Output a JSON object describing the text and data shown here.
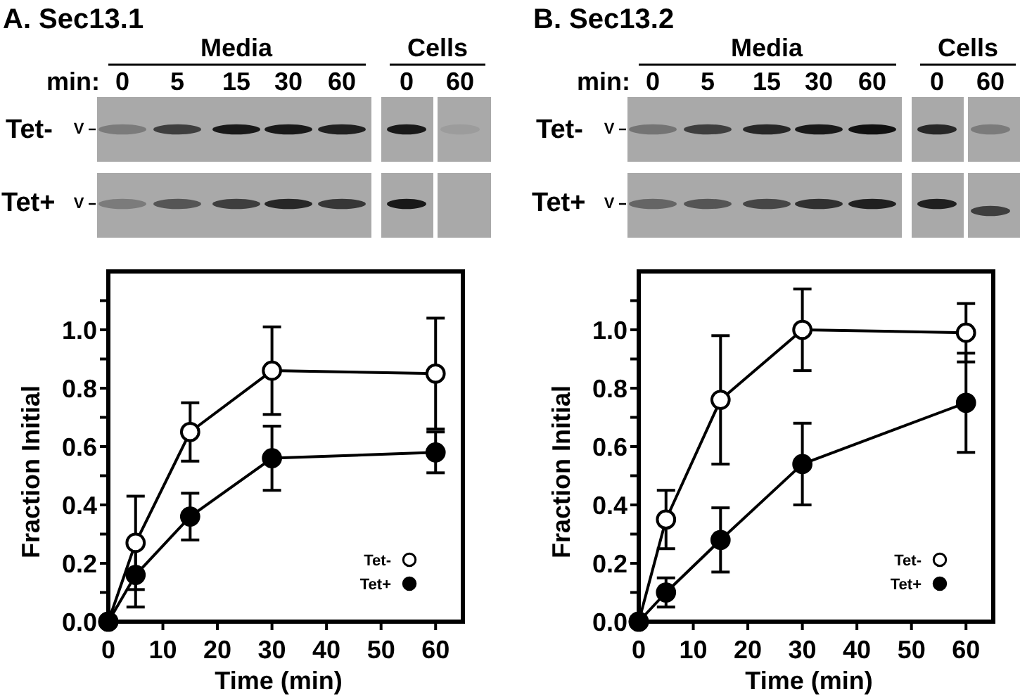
{
  "chart_data": [
    {
      "type": "line",
      "title": "A. Sec13.1",
      "xlabel": "Time (min)",
      "ylabel": "Fraction Initial",
      "annotations": [
        "Media",
        "Cells",
        "min:",
        "0",
        "5",
        "15",
        "30",
        "60",
        "0",
        "60",
        "Tet-",
        "V",
        "Tet+",
        "V"
      ],
      "x": [
        0,
        5,
        15,
        30,
        60
      ],
      "series": [
        {
          "name": "Tet-",
          "color": "#ffffff",
          "values": [
            0,
            0.27,
            0.65,
            0.86,
            0.85
          ],
          "errors": [
            null,
            0.16,
            0.1,
            0.15,
            0.19
          ]
        },
        {
          "name": "Tet+",
          "color": "#000000",
          "values": [
            0,
            0.16,
            0.36,
            0.56,
            0.58
          ],
          "errors": [
            null,
            0.11,
            0.08,
            0.11,
            0.07
          ]
        }
      ],
      "xlim": [
        0,
        65
      ],
      "xticks": [
        0,
        10,
        20,
        30,
        40,
        50,
        60
      ],
      "ylim": [
        0,
        1.2
      ],
      "yticks": [
        {
          "value": 0,
          "label": "0.0"
        },
        {
          "value": 0.1,
          "label": null
        },
        0.2,
        {
          "value": 0.3,
          "label": null
        },
        0.4,
        {
          "value": 0.5,
          "label": null
        },
        0.6,
        {
          "value": 0.7,
          "label": null
        },
        0.8,
        {
          "value": 0.9,
          "label": null
        },
        {
          "value": 1,
          "label": "1.0"
        },
        {
          "value": 1.1,
          "label": null
        }
      ],
      "legend": "bottom right",
      "marker": "circle"
    },
    {
      "type": "line",
      "title": "B. Sec13.2",
      "xlabel": "Time (min)",
      "ylabel": "Fraction Initial",
      "annotations": [
        "Media",
        "Cells",
        "min:",
        "0",
        "5",
        "15",
        "30",
        "60",
        "0",
        "60",
        "Tet-",
        "V",
        "Tet+",
        "V"
      ],
      "x": [
        0,
        5,
        15,
        30,
        60
      ],
      "series": [
        {
          "name": "Tet-",
          "color": "#ffffff",
          "values": [
            0,
            0.35,
            0.76,
            1.0,
            0.99
          ],
          "errors": [
            null,
            0.1,
            0.22,
            0.14,
            0.1
          ]
        },
        {
          "name": "Tet+",
          "color": "#000000",
          "values": [
            0,
            0.1,
            0.28,
            0.54,
            0.75
          ],
          "errors": [
            null,
            0.05,
            0.11,
            0.14,
            0.17
          ]
        }
      ],
      "xlim": [
        0,
        65
      ],
      "xticks": [
        0,
        10,
        20,
        30,
        40,
        50,
        60
      ],
      "ylim": [
        0,
        1.2
      ],
      "yticks": [
        {
          "value": 0,
          "label": "0.0"
        },
        {
          "value": 0.1,
          "label": null
        },
        0.2,
        {
          "value": 0.3,
          "label": null
        },
        0.4,
        {
          "value": 0.5,
          "label": null
        },
        0.6,
        {
          "value": 0.7,
          "label": null
        },
        0.8,
        {
          "value": 0.9,
          "label": null
        },
        {
          "value": 1,
          "label": "1.0"
        },
        {
          "value": 1.1,
          "label": null
        }
      ],
      "legend": "bottom right",
      "marker": "circle"
    }
  ]
}
